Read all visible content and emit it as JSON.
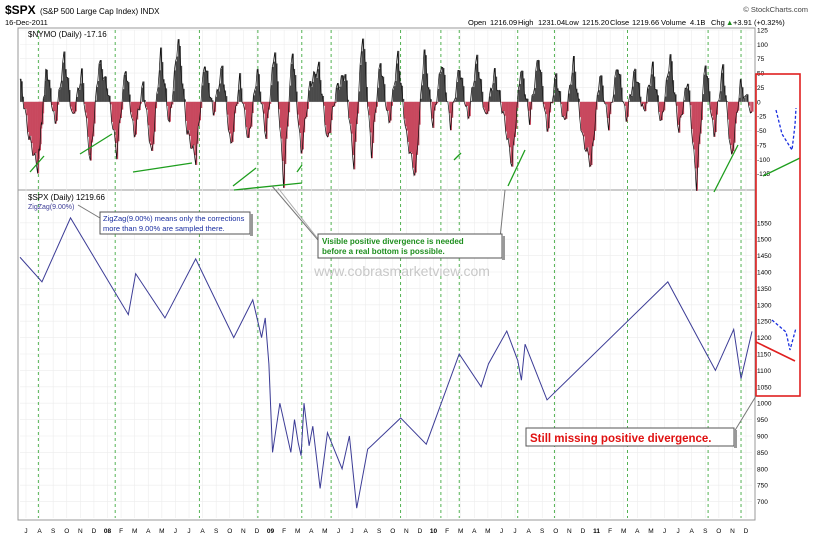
{
  "header": {
    "symbol": "$SPX",
    "name": "(S&P 500 Large Cap Index) INDX",
    "date": "16-Dec-2011",
    "brand": "© StockCharts.com",
    "open_label": "Open",
    "open": "1216.09",
    "high_label": "High",
    "high": "1231.04",
    "low_label": "Low",
    "low": "1215.20",
    "close_label": "Close",
    "close": "1219.66",
    "volume_label": "Volume",
    "volume": "4.1B",
    "chg_label": "Chg",
    "chg": "+3.91 (+0.32%)",
    "chg_arrow": "▲"
  },
  "chart_data": [
    {
      "type": "area",
      "title": "$NYMO (Daily) -17.16",
      "ylim": [
        -150,
        125
      ],
      "y_ticks": [
        125,
        100,
        75,
        50,
        25,
        0,
        -25,
        -50,
        -75,
        -100,
        -125
      ],
      "colors": {
        "positive": "#4a4a4a",
        "negative": "#c8485e"
      },
      "x": [
        0,
        0.012,
        0.024,
        0.03,
        0.036,
        0.048,
        0.06,
        0.072,
        0.084,
        0.096,
        0.108,
        0.12,
        0.132,
        0.144,
        0.156,
        0.168,
        0.18,
        0.192,
        0.204,
        0.216,
        0.228,
        0.24,
        0.252,
        0.264,
        0.276,
        0.288,
        0.3,
        0.312,
        0.324,
        0.336,
        0.348,
        0.36,
        0.372,
        0.384,
        0.396,
        0.408,
        0.42,
        0.432,
        0.444,
        0.456,
        0.468,
        0.48,
        0.492,
        0.504,
        0.516,
        0.528,
        0.54,
        0.552,
        0.564,
        0.576,
        0.588,
        0.6,
        0.612,
        0.624,
        0.636,
        0.648,
        0.66,
        0.672,
        0.684,
        0.696,
        0.708,
        0.72,
        0.732,
        0.744,
        0.756,
        0.768,
        0.78,
        0.792,
        0.804,
        0.816,
        0.828,
        0.84,
        0.852,
        0.864,
        0.876,
        0.888,
        0.9,
        0.912,
        0.924,
        0.936,
        0.948,
        0.96,
        0.972,
        0.984,
        1.0
      ],
      "values": [
        40,
        -60,
        -115,
        -30,
        60,
        -40,
        80,
        -30,
        50,
        -105,
        70,
        20,
        -90,
        60,
        -60,
        30,
        -95,
        85,
        -40,
        110,
        -50,
        -100,
        70,
        -20,
        60,
        -80,
        40,
        -70,
        55,
        -60,
        95,
        -140,
        90,
        -90,
        30,
        60,
        -70,
        20,
        50,
        -110,
        120,
        -90,
        70,
        -40,
        80,
        -60,
        -130,
        90,
        -40,
        70,
        -40,
        60,
        -30,
        75,
        -30,
        50,
        -20,
        -110,
        60,
        -30,
        80,
        -50,
        45,
        -40,
        70,
        -60,
        -110,
        50,
        -40,
        65,
        -30,
        55,
        -20,
        60,
        -40,
        80,
        -50,
        40,
        -145,
        70,
        -60,
        60,
        -100,
        30,
        -17.16
      ]
    },
    {
      "type": "line",
      "title": "$SPX (Daily) 1219.66",
      "series": [
        {
          "name": "ZigZag(9.00%)",
          "color": "#3c3c96"
        }
      ],
      "ylim": [
        650,
        1650
      ],
      "y_ticks": [
        1550,
        1500,
        1450,
        1400,
        1350,
        1300,
        1250,
        1200,
        1150,
        1100,
        1050,
        1000,
        950,
        900,
        850,
        800,
        750,
        700
      ],
      "x": [
        0,
        0.03,
        0.069,
        0.148,
        0.158,
        0.198,
        0.24,
        0.292,
        0.318,
        0.33,
        0.335,
        0.34,
        0.345,
        0.355,
        0.37,
        0.375,
        0.38,
        0.384,
        0.388,
        0.395,
        0.4,
        0.41,
        0.42,
        0.44,
        0.45,
        0.46,
        0.475,
        0.48,
        0.52,
        0.555,
        0.6,
        0.63,
        0.64,
        0.665,
        0.68,
        0.685,
        0.69,
        0.72,
        0.885,
        0.95,
        0.975,
        0.985,
        1.0
      ],
      "values": [
        1445,
        1370,
        1565,
        1270,
        1395,
        1260,
        1440,
        1200,
        1315,
        1200,
        1260,
        1120,
        850,
        1000,
        850,
        950,
        880,
        840,
        1000,
        870,
        930,
        740,
        910,
        800,
        900,
        680,
        860,
        870,
        955,
        875,
        1150,
        1050,
        1120,
        1220,
        1130,
        1070,
        1180,
        1010,
        1370,
        1100,
        1225,
        1075,
        1219
      ]
    }
  ],
  "x_axis": {
    "labels": [
      "J",
      "A",
      "S",
      "O",
      "N",
      "D",
      "08",
      "F",
      "M",
      "A",
      "M",
      "J",
      "J",
      "A",
      "S",
      "O",
      "N",
      "D",
      "09",
      "F",
      "M",
      "A",
      "M",
      "J",
      "J",
      "A",
      "S",
      "O",
      "N",
      "D",
      "10",
      "F",
      "M",
      "A",
      "M",
      "J",
      "J",
      "A",
      "S",
      "O",
      "N",
      "D",
      "11",
      "F",
      "M",
      "A",
      "M",
      "J",
      "J",
      "A",
      "S",
      "O",
      "N",
      "D"
    ]
  },
  "annotations": {
    "zigzag_note_line1": "ZigZag(9.00%) means only the corrections",
    "zigzag_note_line2": "more than 9.00% are sampled there.",
    "divergence_note_line1": "Visible positive divergence is needed",
    "divergence_note_line2": "before a real bottom is possible.",
    "missing_note": "Still missing positive divergence.",
    "watermark": "www.cobrasmarketview.com"
  }
}
